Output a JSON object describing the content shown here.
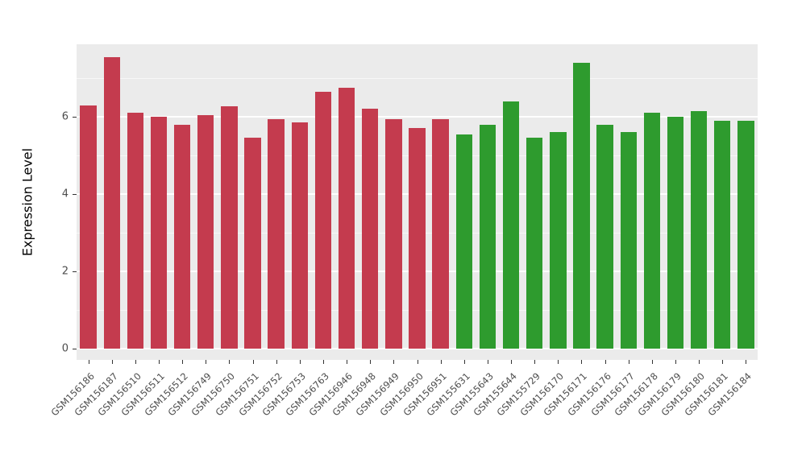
{
  "figure": {
    "background": "#ffffff",
    "panel_background": "#ebebeb",
    "grid_color": "#ffffff",
    "axis_text_color": "#4d4d4d"
  },
  "chart_data": {
    "type": "bar",
    "title": "",
    "xlabel": "",
    "ylabel": "Expression Level",
    "ylim": [
      0,
      7.9
    ],
    "yticks": [
      0,
      2,
      4,
      6
    ],
    "yticks_minor": [
      1,
      3,
      5,
      7
    ],
    "grid": "on",
    "legend": "none",
    "categories": [
      "GSM156186",
      "GSM156187",
      "GSM156510",
      "GSM156511",
      "GSM156512",
      "GSM156749",
      "GSM156750",
      "GSM156751",
      "GSM156752",
      "GSM156753",
      "GSM156763",
      "GSM156946",
      "GSM156948",
      "GSM156949",
      "GSM156950",
      "GSM156951",
      "GSM155631",
      "GSM155643",
      "GSM155644",
      "GSM155729",
      "GSM156170",
      "GSM156171",
      "GSM156176",
      "GSM156177",
      "GSM156178",
      "GSM156179",
      "GSM156180",
      "GSM156181",
      "GSM156184"
    ],
    "series": [
      {
        "name": "Expression Level",
        "values": [
          6.3,
          7.55,
          6.1,
          6.0,
          5.8,
          6.05,
          6.28,
          5.45,
          5.93,
          5.85,
          6.65,
          6.75,
          6.2,
          5.93,
          5.7,
          5.93,
          5.55,
          5.8,
          6.4,
          5.45,
          5.6,
          7.4,
          5.8,
          5.6,
          6.1,
          6.0,
          6.15,
          5.9,
          5.9
        ]
      }
    ],
    "bar_groups": [
      "red",
      "red",
      "red",
      "red",
      "red",
      "red",
      "red",
      "red",
      "red",
      "red",
      "red",
      "red",
      "red",
      "red",
      "red",
      "red",
      "green",
      "green",
      "green",
      "green",
      "green",
      "green",
      "green",
      "green",
      "green",
      "green",
      "green",
      "green",
      "green"
    ],
    "group_colors": {
      "red": "#c43b4e",
      "green": "#2e9b2e"
    }
  }
}
